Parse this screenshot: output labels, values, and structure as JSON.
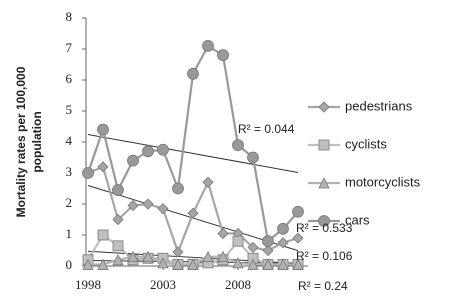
{
  "chart_data": {
    "type": "line",
    "y_label": [
      "Mortality rates per 100,000",
      "population"
    ],
    "x": [
      1998,
      1999,
      2000,
      2001,
      2002,
      2003,
      2004,
      2005,
      2006,
      2007,
      2008,
      2009,
      2010,
      2011,
      2012
    ],
    "xlim": [
      1998,
      2012
    ],
    "xticks": [
      1998,
      2003,
      2008
    ],
    "ylim": [
      0,
      8
    ],
    "yticks": [
      0,
      1,
      2,
      3,
      4,
      5,
      6,
      7,
      8
    ],
    "series": [
      {
        "name": "pedestrians",
        "color": "#a6a6a6",
        "marker": "diamond",
        "values": [
          3.0,
          3.2,
          1.5,
          1.95,
          2.0,
          1.85,
          0.45,
          1.7,
          2.7,
          1.05,
          1.05,
          0.6,
          0.5,
          0.75,
          0.9
        ]
      },
      {
        "name": "cyclists",
        "color": "#c0c0c0",
        "marker": "square",
        "values": [
          0.2,
          1.0,
          0.65,
          0.2,
          0.25,
          0.25,
          0.05,
          0.05,
          0.1,
          0.2,
          0.8,
          0.25,
          0.05,
          0.05,
          0.05
        ]
      },
      {
        "name": "motorcyclists",
        "color": "#b3b3b3",
        "marker": "triangle",
        "values": [
          0.05,
          0.05,
          0.2,
          0.3,
          0.3,
          0.1,
          0.05,
          0.05,
          0.3,
          0.3,
          0.1,
          0.05,
          0.05,
          0.05,
          0.05
        ]
      },
      {
        "name": "cars",
        "color": "#999999",
        "marker": "circle",
        "values": [
          3.0,
          4.4,
          2.45,
          3.4,
          3.7,
          3.75,
          2.5,
          6.2,
          7.1,
          6.8,
          3.9,
          3.5,
          0.8,
          1.2,
          1.75
        ]
      }
    ],
    "annotations": [
      "R² = 0.044",
      "R² = 0.533",
      "R² = 0.106",
      "R² = 0.24"
    ]
  }
}
